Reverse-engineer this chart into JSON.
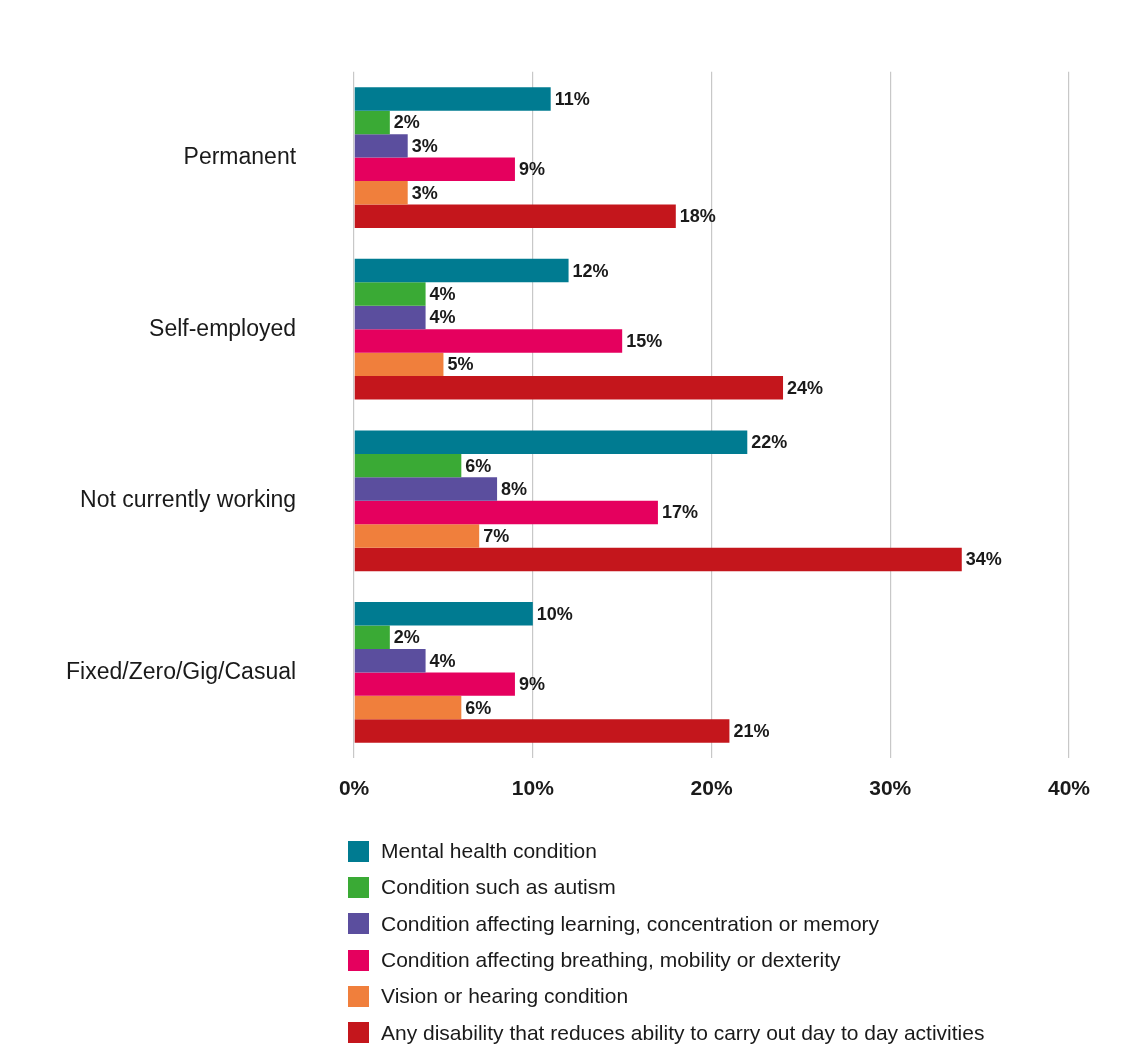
{
  "chart_data": {
    "type": "bar",
    "orientation": "horizontal",
    "categories": [
      "Permanent",
      "Self-employed",
      "Not currently working",
      "Fixed/Zero/Gig/Casual"
    ],
    "series": [
      {
        "name": "Mental health condition",
        "color": "#007b91",
        "values": [
          11,
          12,
          22,
          10
        ],
        "value_labels": [
          "11%",
          "12%",
          "22%",
          "10%"
        ]
      },
      {
        "name": "Condition such as autism",
        "color": "#3aaa35",
        "values": [
          2,
          4,
          6,
          2
        ],
        "value_labels": [
          "2%",
          "4%",
          "6%",
          "2%"
        ]
      },
      {
        "name": "Condition affecting learning, concentration or memory",
        "color": "#5b4e9e",
        "values": [
          3,
          4,
          8,
          4
        ],
        "value_labels": [
          "3%",
          "4%",
          "8%",
          "4%"
        ]
      },
      {
        "name": "Condition affecting breathing, mobility or dexterity",
        "color": "#e5005e",
        "values": [
          9,
          15,
          17,
          9
        ],
        "value_labels": [
          "9%",
          "15%",
          "17%",
          "9%"
        ]
      },
      {
        "name": "Vision or hearing condition",
        "color": "#f07f3c",
        "values": [
          3,
          5,
          7,
          6
        ],
        "value_labels": [
          "3%",
          "5%",
          "7%",
          "6%"
        ]
      },
      {
        "name": "Any disability that reduces ability to carry out day to day activities",
        "color": "#c4161c",
        "values": [
          18,
          24,
          34,
          21
        ],
        "value_labels": [
          "18%",
          "24%",
          "34%",
          "21%"
        ]
      }
    ],
    "xlim": [
      0,
      40
    ],
    "xticks": [
      {
        "value": 0,
        "label": "0%"
      },
      {
        "value": 10,
        "label": "10%"
      },
      {
        "value": 20,
        "label": "20%"
      },
      {
        "value": 30,
        "label": "30%"
      },
      {
        "value": 40,
        "label": "40%"
      }
    ],
    "grid": "x",
    "legend": "bottom"
  }
}
